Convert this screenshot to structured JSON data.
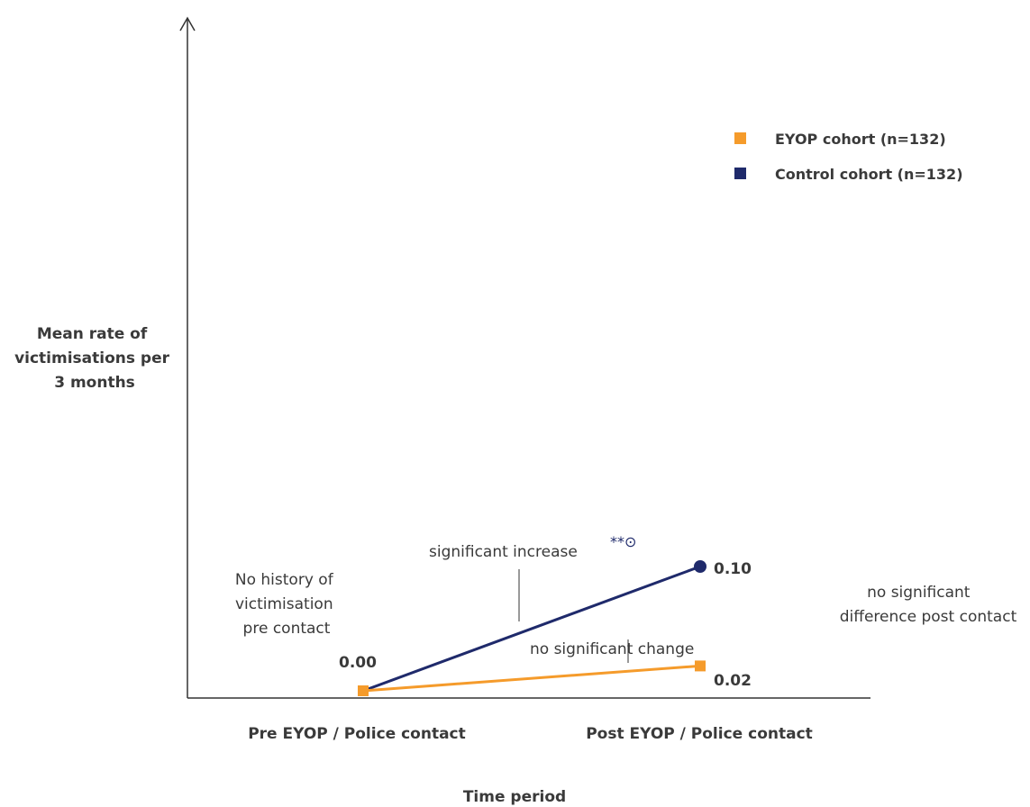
{
  "chart_data": {
    "type": "line",
    "title": "",
    "xlabel": "Time period",
    "ylabel_lines": [
      "Mean rate of",
      "victimisations per",
      "3 months"
    ],
    "categories": [
      "Pre EYOP / Police contact",
      "Post EYOP / Police contact"
    ],
    "ylim": [
      0,
      0.5
    ],
    "grid": false,
    "legend_position": "top-right",
    "series": [
      {
        "name": "EYOP cohort (n=132)",
        "values": [
          0.0,
          0.02
        ],
        "color": "#f59b2b",
        "marker": "square"
      },
      {
        "name": "Control cohort (n=132)",
        "values": [
          0.0,
          0.1
        ],
        "color": "#1f2a6b",
        "marker": "circle"
      }
    ],
    "data_labels": {
      "start": "0.00",
      "control_end": "0.10",
      "eyop_end": "0.02"
    },
    "annotations": {
      "pre_note": [
        "No history of",
        "victimisation",
        "pre contact"
      ],
      "control_note": "significant increase",
      "control_marks": "**⊙",
      "eyop_note": "no significant change",
      "post_note": [
        "no significant",
        "difference post contact"
      ]
    }
  }
}
